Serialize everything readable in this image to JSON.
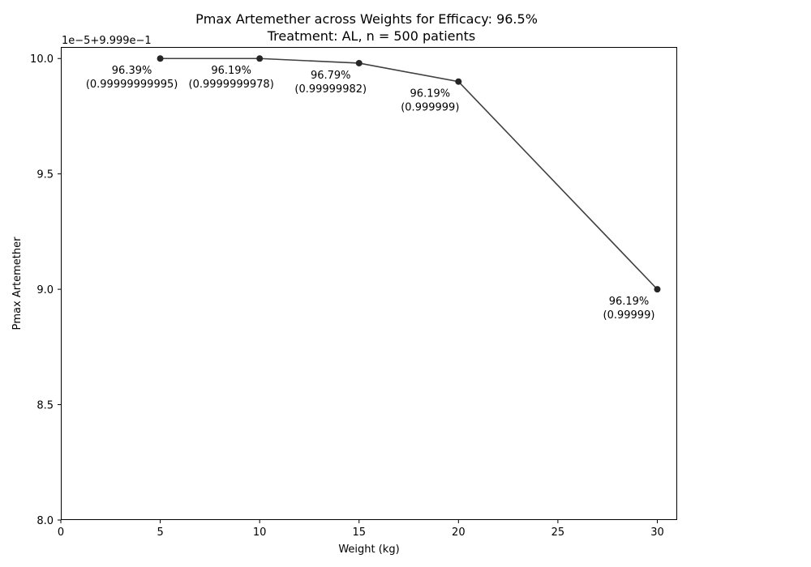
{
  "chart_data": {
    "type": "line",
    "title": "Pmax Artemether across Weights for Efficacy: 96.5%",
    "subtitle": "Treatment: AL, n = 500 patients",
    "xlabel": "Weight (kg)",
    "ylabel": "Pmax Artemether",
    "offset_text": "1e−5+9.999e−1",
    "xlim": [
      0,
      31
    ],
    "ylim": [
      8.0,
      10.05
    ],
    "x_ticks": [
      0,
      5,
      10,
      15,
      20,
      25,
      30
    ],
    "y_ticks": [
      8.0,
      8.5,
      9.0,
      9.5,
      10.0
    ],
    "x_tick_labels": [
      "0",
      "5",
      "10",
      "15",
      "20",
      "25",
      "30"
    ],
    "y_tick_labels": [
      "8.0",
      "8.5",
      "9.0",
      "9.5",
      "10.0"
    ],
    "grid": false,
    "line_color": "#3f3f3f",
    "marker_color": "#262626",
    "x": [
      5,
      10,
      15,
      20,
      30
    ],
    "y": [
      10.0,
      10.0,
      9.98,
      9.9,
      9.0
    ],
    "annotations": [
      {
        "line1": "96.39%",
        "line2": "(0.99999999995)"
      },
      {
        "line1": "96.19%",
        "line2": "(0.9999999978)"
      },
      {
        "line1": "96.79%",
        "line2": "(0.99999982)"
      },
      {
        "line1": "96.19%",
        "line2": "(0.999999)"
      },
      {
        "line1": "96.19%",
        "line2": "(0.99999)"
      }
    ]
  }
}
